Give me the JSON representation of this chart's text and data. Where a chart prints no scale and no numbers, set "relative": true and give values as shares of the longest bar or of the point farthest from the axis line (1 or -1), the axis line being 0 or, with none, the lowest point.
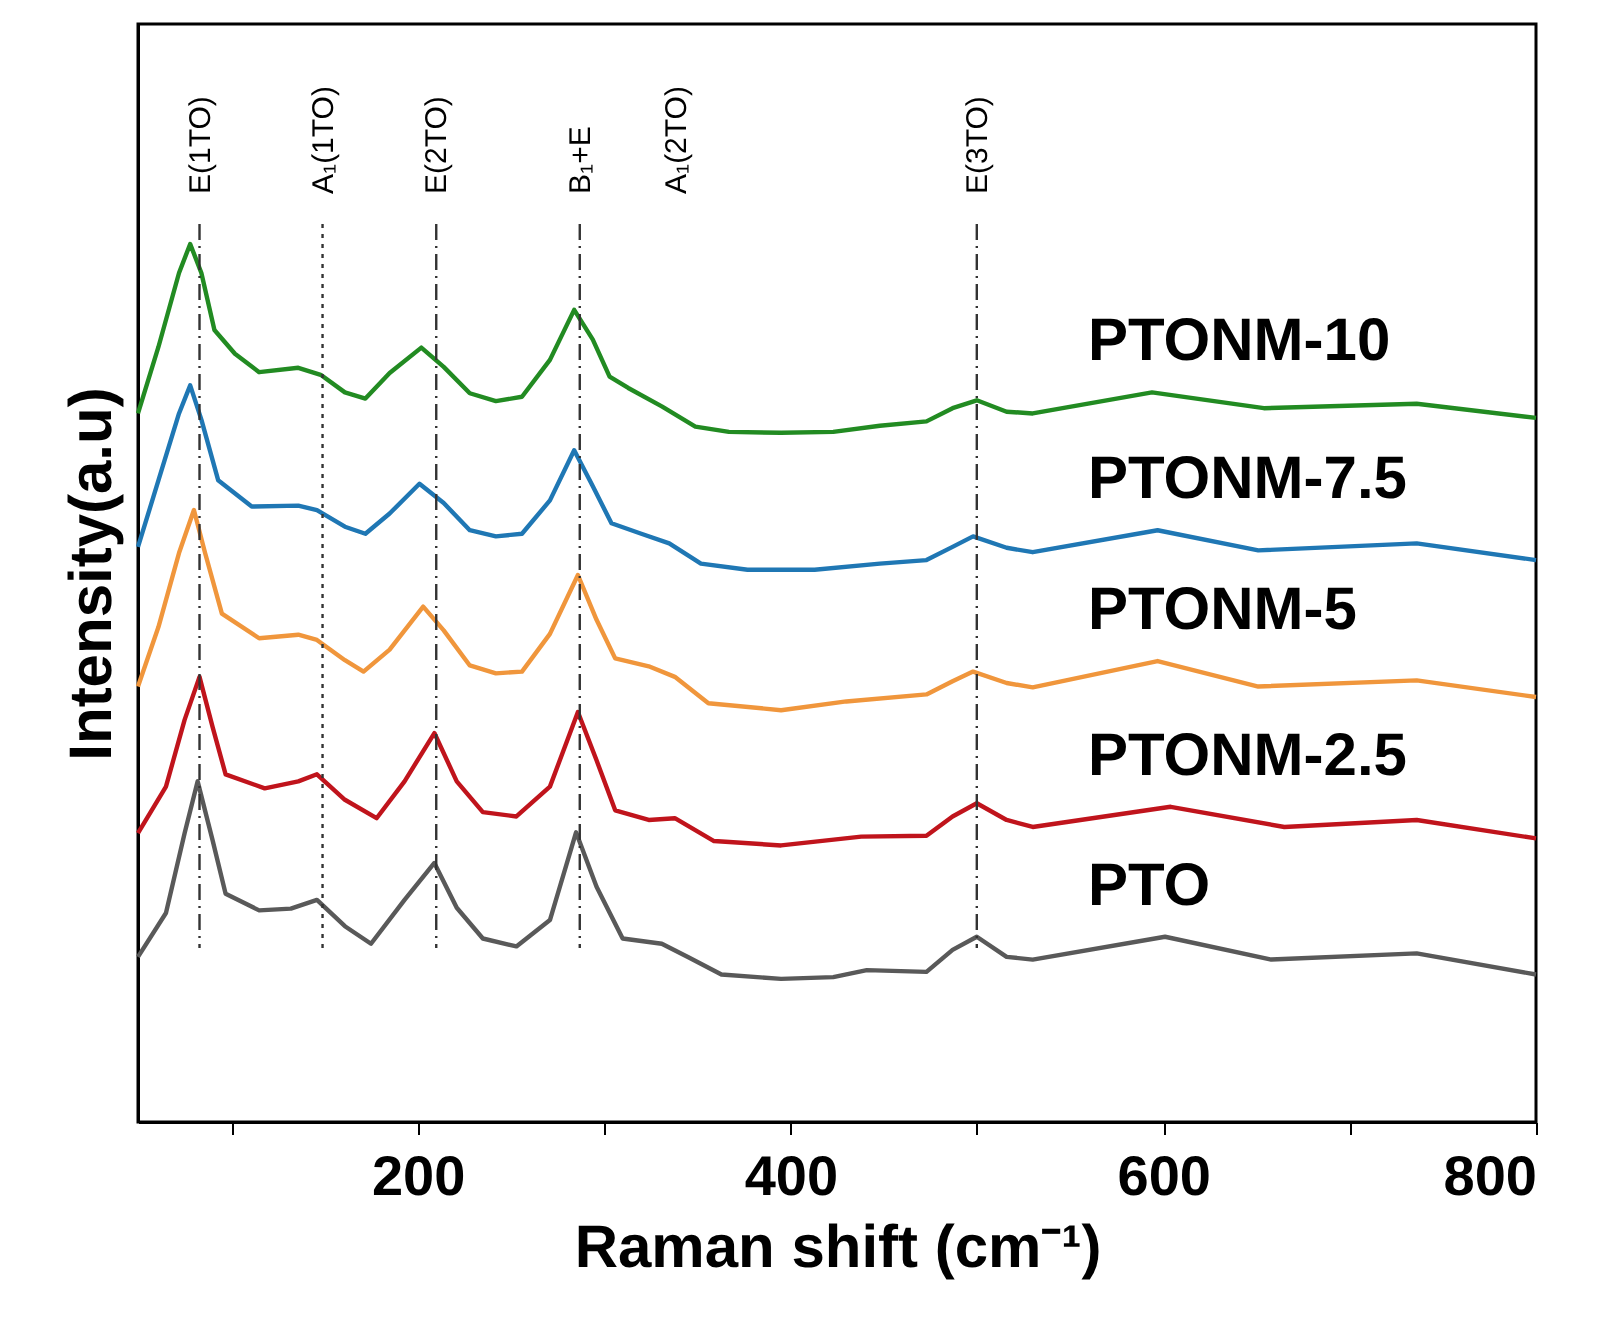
{
  "chart_data": {
    "type": "line",
    "relative": true,
    "xlabel": "Raman shift (cm⁻¹)",
    "ylabel": "Intensity(a.u)",
    "xlim": [
      50,
      800
    ],
    "xticks": [
      {
        "value": 100,
        "label": null
      },
      200,
      {
        "value": 300,
        "label": null
      },
      400,
      {
        "value": 500,
        "label": null
      },
      600,
      {
        "value": 700,
        "label": null
      },
      800
    ],
    "tick_labels": "x",
    "grid": false,
    "legend": false,
    "marker": "none",
    "line_style": "solid",
    "series": [
      {
        "name": "PTONM-10",
        "color": "#228b22",
        "x": [
          50,
          61,
          72,
          78,
          84,
          91,
          102,
          115,
          136,
          148,
          161,
          172,
          185,
          202,
          214,
          228,
          242,
          256,
          271,
          284,
          294,
          303,
          313,
          331,
          349,
          367,
          395,
          423,
          448,
          473,
          487,
          500,
          516,
          530,
          594,
          654,
          736,
          800
        ],
        "values": [
          0.807,
          0.883,
          0.967,
          1.0,
          0.967,
          0.902,
          0.875,
          0.854,
          0.859,
          0.851,
          0.831,
          0.824,
          0.853,
          0.882,
          0.86,
          0.83,
          0.821,
          0.826,
          0.868,
          0.925,
          0.891,
          0.849,
          0.836,
          0.815,
          0.792,
          0.786,
          0.785,
          0.786,
          0.793,
          0.798,
          0.813,
          0.822,
          0.809,
          0.807,
          0.831,
          0.813,
          0.818,
          0.802
        ]
      },
      {
        "name": "PTONM-7.5",
        "color": "#1f77b4",
        "x": [
          50,
          61,
          72,
          78,
          84,
          93,
          111,
          136,
          146,
          161,
          172,
          185,
          201,
          214,
          228,
          242,
          256,
          271,
          284,
          294,
          304,
          320,
          335,
          352,
          377,
          413,
          448,
          473,
          487,
          498,
          516,
          530,
          597,
          651,
          736,
          800
        ],
        "values": [
          0.655,
          0.731,
          0.807,
          0.839,
          0.8,
          0.731,
          0.701,
          0.702,
          0.697,
          0.678,
          0.67,
          0.693,
          0.727,
          0.705,
          0.674,
          0.667,
          0.67,
          0.708,
          0.765,
          0.724,
          0.682,
          0.67,
          0.659,
          0.636,
          0.629,
          0.629,
          0.636,
          0.64,
          0.655,
          0.667,
          0.654,
          0.649,
          0.674,
          0.651,
          0.659,
          0.64
        ]
      },
      {
        "name": "PTONM-5",
        "color": "#f0963c",
        "x": [
          50,
          61,
          72,
          80,
          86,
          95,
          115,
          136,
          146,
          161,
          171,
          185,
          203,
          214,
          228,
          242,
          256,
          271,
          286,
          296,
          306,
          324,
          338,
          356,
          395,
          430,
          473,
          487,
          498,
          516,
          530,
          597,
          651,
          736,
          800
        ],
        "values": [
          0.496,
          0.564,
          0.648,
          0.697,
          0.648,
          0.579,
          0.551,
          0.555,
          0.549,
          0.526,
          0.513,
          0.538,
          0.587,
          0.56,
          0.52,
          0.511,
          0.513,
          0.556,
          0.623,
          0.572,
          0.528,
          0.519,
          0.507,
          0.477,
          0.469,
          0.479,
          0.487,
          0.502,
          0.513,
          0.5,
          0.495,
          0.525,
          0.496,
          0.503,
          0.484
        ]
      },
      {
        "name": "PTONM-2.5",
        "color": "#c0141c",
        "x": [
          50,
          65,
          75,
          83,
          90,
          97,
          118,
          136,
          146,
          161,
          178,
          193,
          209,
          221,
          235,
          253,
          271,
          286,
          296,
          306,
          324,
          338,
          359,
          395,
          438,
          473,
          487,
          500,
          516,
          530,
          604,
          665,
          736,
          800
        ],
        "values": [
          0.329,
          0.382,
          0.458,
          0.507,
          0.45,
          0.396,
          0.38,
          0.388,
          0.396,
          0.367,
          0.346,
          0.388,
          0.443,
          0.388,
          0.353,
          0.348,
          0.382,
          0.467,
          0.412,
          0.355,
          0.344,
          0.346,
          0.32,
          0.315,
          0.325,
          0.326,
          0.348,
          0.363,
          0.344,
          0.336,
          0.359,
          0.336,
          0.344,
          0.323
        ]
      },
      {
        "name": "PTO",
        "color": "#595959",
        "x": [
          50,
          65,
          75,
          82,
          90,
          97,
          115,
          132,
          146,
          161,
          175,
          193,
          209,
          221,
          235,
          253,
          271,
          285,
          296,
          310,
          331,
          345,
          363,
          395,
          423,
          441,
          473,
          487,
          500,
          516,
          530,
          601,
          658,
          736,
          800
        ],
        "values": [
          0.188,
          0.238,
          0.329,
          0.388,
          0.321,
          0.26,
          0.241,
          0.243,
          0.253,
          0.223,
          0.203,
          0.253,
          0.295,
          0.244,
          0.209,
          0.2,
          0.23,
          0.33,
          0.268,
          0.209,
          0.203,
          0.188,
          0.168,
          0.163,
          0.165,
          0.173,
          0.171,
          0.196,
          0.211,
          0.188,
          0.185,
          0.211,
          0.185,
          0.192,
          0.168
        ]
      }
    ],
    "ref_lines": [
      {
        "axis": "x",
        "value": 83,
        "label": "E(1TO)",
        "line_style": "dashed",
        "color": "#333333"
      },
      {
        "axis": "x",
        "value": 149,
        "label": "A₁(1TO)",
        "line_style": "dotted",
        "color": "#333333"
      },
      {
        "axis": "x",
        "value": 210,
        "label": "E(2TO)",
        "line_style": "dashed",
        "color": "#333333"
      },
      {
        "axis": "x",
        "value": 287,
        "label": "B₁+E",
        "line_style": "dashed",
        "color": "#333333"
      },
      {
        "axis": "x",
        "value": 500,
        "label": "E(3TO)",
        "line_style": "dashed",
        "color": "#333333"
      }
    ],
    "annotations": [
      "A₁(2TO)"
    ]
  }
}
